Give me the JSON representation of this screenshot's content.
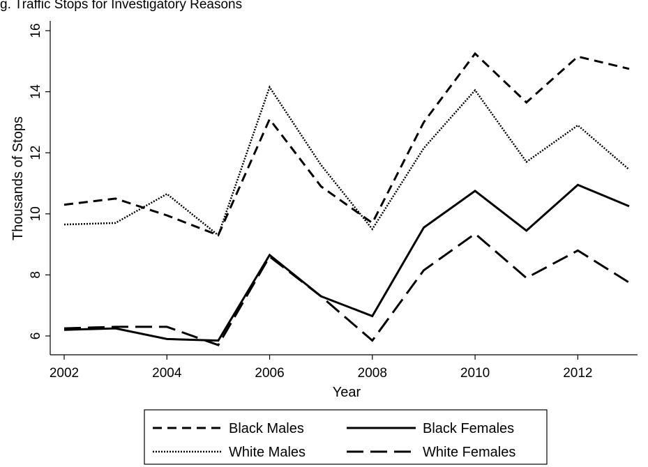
{
  "caption": "g. Traffic Stops for Investigatory Reasons",
  "chart_data": {
    "type": "line",
    "title": "",
    "xlabel": "Year",
    "ylabel": "Thousands of Stops",
    "xlim": [
      2002,
      2013
    ],
    "ylim": [
      5.4,
      16.2
    ],
    "x": [
      2002,
      2003,
      2004,
      2005,
      2006,
      2007,
      2008,
      2009,
      2010,
      2011,
      2012,
      2013
    ],
    "x_ticks": [
      2002,
      2004,
      2006,
      2008,
      2010,
      2012
    ],
    "x_tick_labels": [
      "2002",
      "2004",
      "2006",
      "2008",
      "2010",
      "2012"
    ],
    "y_ticks": [
      6,
      8,
      10,
      12,
      14,
      16
    ],
    "y_tick_labels": [
      "6",
      "8",
      "10",
      "12",
      "14",
      "16"
    ],
    "grid": false,
    "legend_position": "bottom",
    "series": [
      {
        "name": "Black Males",
        "style": "short-dash",
        "values": [
          10.3,
          10.5,
          9.95,
          9.3,
          13.1,
          10.9,
          9.7,
          13.0,
          15.25,
          13.65,
          15.15,
          14.75
        ]
      },
      {
        "name": "Black Females",
        "style": "solid",
        "values": [
          6.2,
          6.25,
          5.9,
          5.85,
          8.65,
          7.3,
          6.65,
          9.55,
          10.75,
          9.45,
          10.95,
          10.25
        ]
      },
      {
        "name": "White Males",
        "style": "dotted",
        "values": [
          9.65,
          9.7,
          10.65,
          9.3,
          14.15,
          11.6,
          9.5,
          12.15,
          14.05,
          11.7,
          12.9,
          11.45
        ]
      },
      {
        "name": "White Females",
        "style": "long-dash",
        "values": [
          6.25,
          6.3,
          6.3,
          5.7,
          8.6,
          7.3,
          5.85,
          8.15,
          9.35,
          7.9,
          8.8,
          7.75
        ]
      }
    ]
  }
}
